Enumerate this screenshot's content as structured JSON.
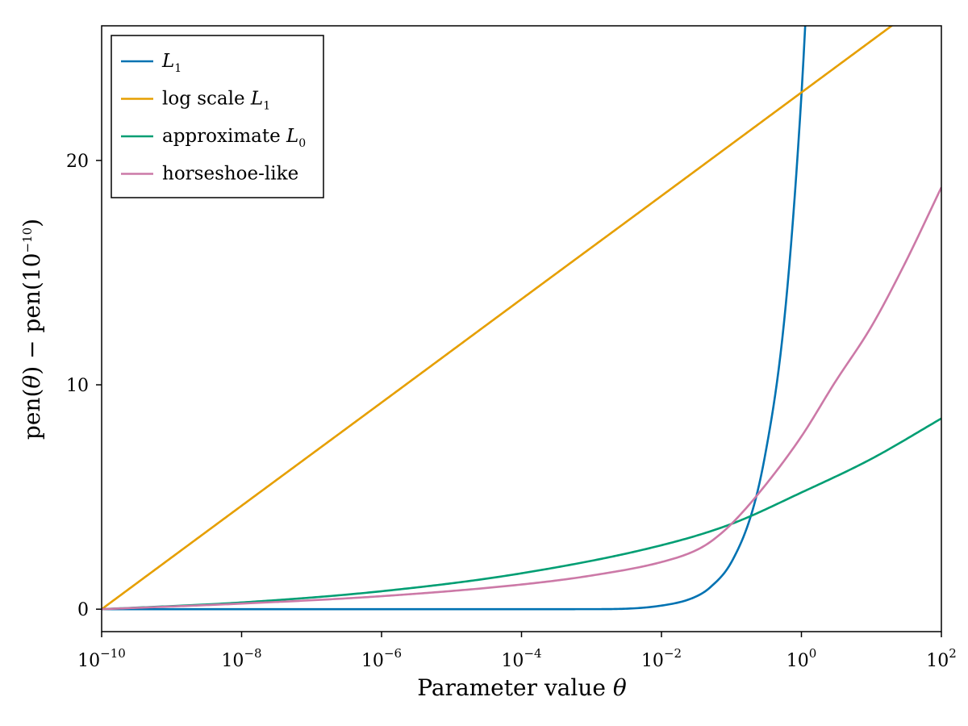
{
  "chart_data": {
    "type": "line",
    "xscale": "log",
    "xlim": [
      1e-10,
      100
    ],
    "ylim": [
      -1,
      26
    ],
    "xticks": [
      1e-10,
      1e-08,
      1e-06,
      0.0001,
      0.01,
      1,
      100
    ],
    "xtick_labels": [
      {
        "base": "10",
        "exp": "−10"
      },
      {
        "base": "10",
        "exp": "−8"
      },
      {
        "base": "10",
        "exp": "−6"
      },
      {
        "base": "10",
        "exp": "−4"
      },
      {
        "base": "10",
        "exp": "−2"
      },
      {
        "base": "10",
        "exp": "0"
      },
      {
        "base": "10",
        "exp": "2"
      }
    ],
    "yticks": [
      0,
      10,
      20
    ],
    "ytick_labels": [
      "0",
      "10",
      "20"
    ],
    "xlabel": {
      "text": "Parameter value ",
      "symbol": "θ"
    },
    "ylabel": {
      "t1": "pen(",
      "sym1": "θ",
      "t2": ") − pen(10",
      "exp": "−10",
      "t3": ")"
    },
    "grid": false,
    "legend_position": "top-left",
    "series": [
      {
        "name": "L",
        "name_sub": "1",
        "name_prefix": "",
        "color": "#0072b2",
        "x": [
          1e-10,
          0.001,
          0.01,
          0.03,
          0.05,
          0.1,
          0.2,
          0.3,
          0.5,
          0.7,
          1.0,
          1.2
        ],
        "y": [
          0,
          0.002,
          0.16,
          0.54,
          0.98,
          2.1,
          4.4,
          6.8,
          11.3,
          16.0,
          22.9,
          27.5
        ]
      },
      {
        "name": "L",
        "name_sub": "1",
        "name_prefix": "log scale ",
        "color": "#e69f00",
        "x": [
          1e-10,
          1e-08,
          1e-06,
          0.0001,
          0.01,
          1,
          25
        ],
        "y": [
          0,
          4.61,
          9.21,
          13.82,
          18.42,
          23.03,
          26.25
        ]
      },
      {
        "name": "L",
        "name_sub": "0",
        "name_prefix": "approximate ",
        "color": "#009e73",
        "x": [
          1e-10,
          1e-08,
          1e-06,
          0.0001,
          0.01,
          0.1,
          1,
          10,
          100
        ],
        "y": [
          0,
          0.3,
          0.8,
          1.6,
          2.85,
          3.8,
          5.2,
          6.7,
          8.5
        ]
      },
      {
        "name": "horseshoe-like",
        "name_sub": "",
        "name_prefix": "",
        "color": "#cc79a7",
        "x": [
          1e-10,
          1e-08,
          1e-06,
          0.0001,
          0.001,
          0.01,
          0.03,
          0.05,
          0.1,
          0.3,
          1,
          3,
          10,
          30,
          100
        ],
        "y": [
          0,
          0.25,
          0.58,
          1.1,
          1.5,
          2.1,
          2.6,
          3.0,
          3.8,
          5.5,
          7.7,
          10.1,
          12.6,
          15.4,
          18.8
        ]
      }
    ]
  }
}
